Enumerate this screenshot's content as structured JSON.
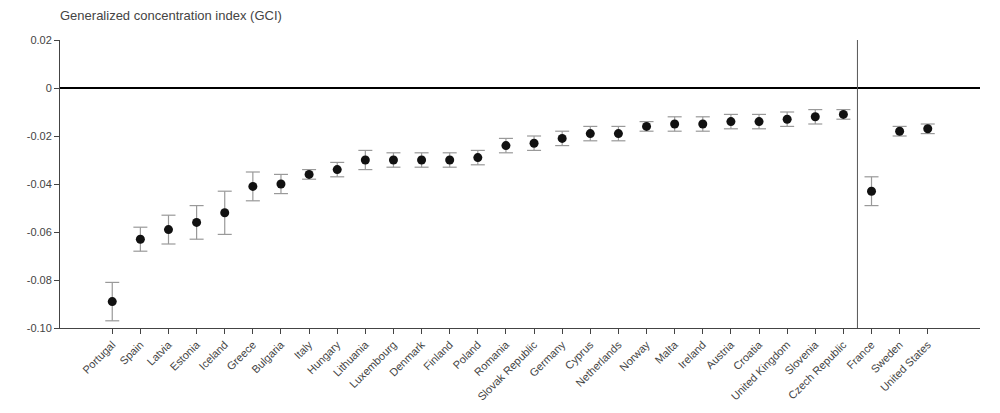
{
  "chart_data": {
    "type": "scatter",
    "title": "Generalized concentration index (GCI)",
    "categories": [
      "Portugal",
      "Spain",
      "Latvia",
      "Estonia",
      "Iceland",
      "Greece",
      "Bulgaria",
      "Italy",
      "Hungary",
      "Lithuania",
      "Luxembourg",
      "Denmark",
      "Finland",
      "Poland",
      "Romania",
      "Slovak Republic",
      "Germany",
      "Cyprus",
      "Netherlands",
      "Norway",
      "Malta",
      "Ireland",
      "Austria",
      "Croatia",
      "United Kingdom",
      "Slovenia",
      "Czech Republic",
      "France",
      "Sweden",
      "United States"
    ],
    "values": [
      -0.089,
      -0.063,
      -0.059,
      -0.056,
      -0.052,
      -0.041,
      -0.04,
      -0.036,
      -0.034,
      -0.03,
      -0.03,
      -0.03,
      -0.03,
      -0.029,
      -0.024,
      -0.023,
      -0.021,
      -0.019,
      -0.019,
      -0.016,
      -0.015,
      -0.015,
      -0.014,
      -0.014,
      -0.013,
      -0.012,
      -0.011,
      -0.043,
      -0.018,
      -0.017
    ],
    "ci_low": [
      -0.097,
      -0.068,
      -0.065,
      -0.063,
      -0.061,
      -0.047,
      -0.044,
      -0.038,
      -0.037,
      -0.034,
      -0.033,
      -0.033,
      -0.033,
      -0.032,
      -0.027,
      -0.026,
      -0.024,
      -0.022,
      -0.022,
      -0.018,
      -0.018,
      -0.018,
      -0.017,
      -0.017,
      -0.016,
      -0.015,
      -0.013,
      -0.049,
      -0.02,
      -0.019
    ],
    "ci_high": [
      -0.081,
      -0.058,
      -0.053,
      -0.049,
      -0.043,
      -0.035,
      -0.036,
      -0.034,
      -0.031,
      -0.026,
      -0.027,
      -0.027,
      -0.027,
      -0.026,
      -0.021,
      -0.02,
      -0.018,
      -0.016,
      -0.016,
      -0.014,
      -0.012,
      -0.012,
      -0.011,
      -0.011,
      -0.01,
      -0.009,
      -0.009,
      -0.037,
      -0.016,
      -0.015
    ],
    "divider_after": "Czech Republic",
    "color": "#111111",
    "marker": "circle",
    "ylim": [
      -0.1,
      0.02
    ],
    "yticks": [
      {
        "value": -0.1,
        "label": "-0.10"
      },
      -0.08,
      -0.06,
      -0.04,
      -0.02,
      0,
      0.02
    ],
    "grid": false
  }
}
